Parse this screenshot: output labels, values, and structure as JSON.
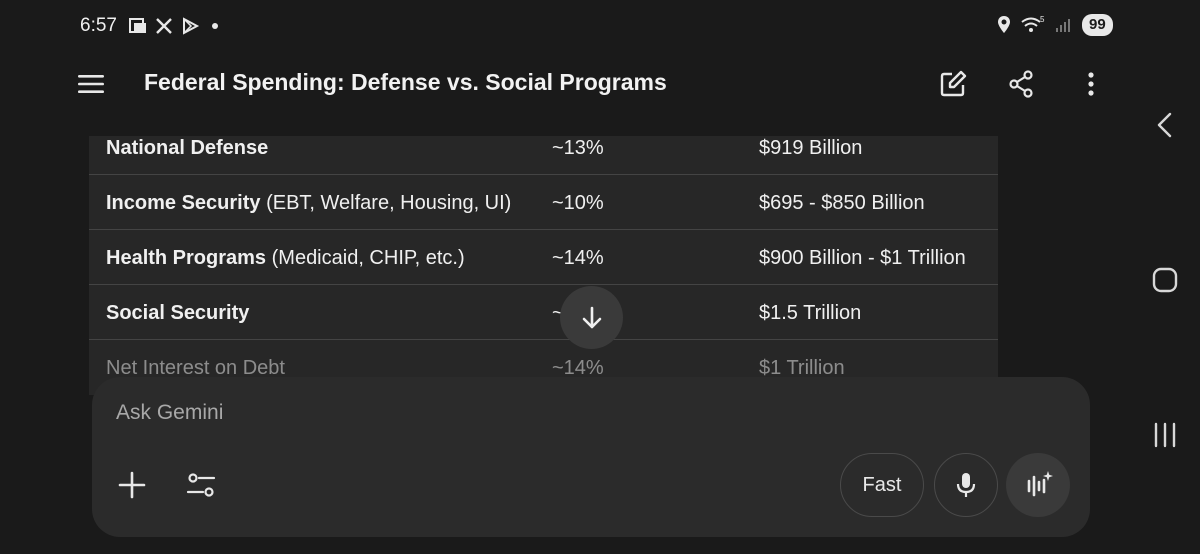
{
  "status": {
    "time": "6:57",
    "battery": "99"
  },
  "header": {
    "title": "Federal Spending: Defense vs. Social Programs"
  },
  "table": {
    "rows": [
      {
        "category": "National Defense",
        "detail": "",
        "percent": "~13%",
        "amount": "$919 Billion"
      },
      {
        "category": "Income Security",
        "detail": " (EBT, Welfare, Housing, UI)",
        "percent": "~10%",
        "amount": "$695 - $850 Billion"
      },
      {
        "category": "Health Programs",
        "detail": " (Medicaid, CHIP, etc.)",
        "percent": "~14%",
        "amount": "$900 Billion - $1 Trillion"
      },
      {
        "category": "Social Security",
        "detail": "",
        "percent": "~",
        "amount": "$1.5 Trillion"
      },
      {
        "category": "Net Interest on Debt",
        "detail": "",
        "percent": "~14%",
        "amount": "$1 Trillion"
      }
    ]
  },
  "composer": {
    "placeholder": "Ask Gemini",
    "fast_label": "Fast"
  },
  "colors": {
    "background": "#1a1a1a",
    "table_bg": "#272727",
    "panel_bg": "#2b2b2b"
  }
}
